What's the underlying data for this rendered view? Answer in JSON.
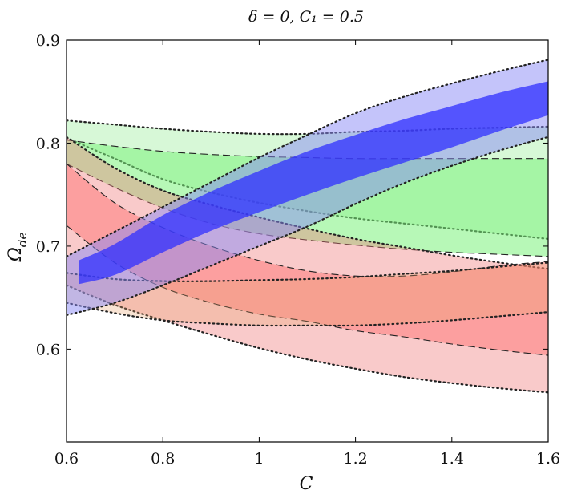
{
  "chart_data": {
    "type": "area",
    "title": "δ = 0, C₁ = 0.5",
    "xlabel": "C",
    "ylabel": "Ω_de",
    "ylabel_main": "Ω",
    "ylabel_sub": "de",
    "xlim": [
      0.6,
      1.6
    ],
    "ylim": [
      0.51,
      0.9
    ],
    "xticks": [
      0.6,
      0.8,
      1.0,
      1.2,
      1.4,
      1.6
    ],
    "xtick_labels": [
      "0.6",
      "0.8",
      "1",
      "1.2",
      "1.4",
      "1.6"
    ],
    "yticks": [
      0.6,
      0.7,
      0.8,
      0.9
    ],
    "ytick_labels": [
      "0.6",
      "0.7",
      "0.8",
      "0.9"
    ],
    "grid": false,
    "regions": [
      {
        "name": "green-outer",
        "color": "#a6f0a6",
        "opacity": 0.45,
        "border": "dotted",
        "x": [
          0.6,
          0.7,
          0.8,
          0.9,
          1.0,
          1.1,
          1.2,
          1.3,
          1.4,
          1.5,
          1.6
        ],
        "upper": [
          0.822,
          0.818,
          0.814,
          0.811,
          0.809,
          0.809,
          0.811,
          0.812,
          0.814,
          0.815,
          0.816
        ],
        "lower": [
          0.805,
          0.785,
          0.765,
          0.752,
          0.742,
          0.734,
          0.727,
          0.722,
          0.717,
          0.712,
          0.707
        ]
      },
      {
        "name": "green-inner",
        "color": "#7cf27c",
        "opacity": 0.55,
        "border": "dashed",
        "x": [
          0.6,
          0.7,
          0.8,
          0.9,
          1.0,
          1.1,
          1.2,
          1.3,
          1.4,
          1.5,
          1.6
        ],
        "upper": [
          0.803,
          0.797,
          0.792,
          0.789,
          0.787,
          0.786,
          0.785,
          0.785,
          0.785,
          0.785,
          0.785
        ],
        "lower": [
          0.78,
          0.757,
          0.737,
          0.722,
          0.712,
          0.706,
          0.701,
          0.697,
          0.694,
          0.692,
          0.69
        ]
      },
      {
        "name": "red-outer",
        "color": "#f07a7a",
        "opacity": 0.4,
        "border": "dotted",
        "x": [
          0.6,
          0.7,
          0.8,
          0.9,
          1.0,
          1.1,
          1.2,
          1.3,
          1.4,
          1.5,
          1.6
        ],
        "upper": [
          0.806,
          0.776,
          0.754,
          0.74,
          0.728,
          0.717,
          0.707,
          0.699,
          0.691,
          0.684,
          0.678
        ],
        "lower": [
          0.662,
          0.643,
          0.628,
          0.614,
          0.601,
          0.59,
          0.581,
          0.573,
          0.567,
          0.562,
          0.558
        ]
      },
      {
        "name": "red-inner",
        "color": "#ff6a6a",
        "opacity": 0.45,
        "border": "dashed",
        "x": [
          0.6,
          0.7,
          0.8,
          0.9,
          1.0,
          1.1,
          1.2,
          1.3,
          1.4,
          1.5,
          1.6
        ],
        "upper": [
          0.78,
          0.742,
          0.718,
          0.7,
          0.686,
          0.676,
          0.671,
          0.671,
          0.675,
          0.681,
          0.685
        ],
        "lower": [
          0.72,
          0.684,
          0.66,
          0.645,
          0.634,
          0.627,
          0.618,
          0.612,
          0.605,
          0.599,
          0.594
        ]
      },
      {
        "name": "horizontal-band",
        "color": "#e9a36c",
        "opacity": 0.3,
        "border": "dotted",
        "x": [
          0.6,
          0.7,
          0.8,
          0.9,
          1.0,
          1.1,
          1.2,
          1.3,
          1.4,
          1.5,
          1.6
        ],
        "upper": [
          0.674,
          0.668,
          0.666,
          0.666,
          0.667,
          0.668,
          0.67,
          0.673,
          0.676,
          0.68,
          0.684
        ],
        "lower": [
          0.645,
          0.635,
          0.628,
          0.625,
          0.623,
          0.623,
          0.623,
          0.625,
          0.628,
          0.632,
          0.636
        ]
      },
      {
        "name": "blue-outer",
        "color": "#8a8af5",
        "opacity": 0.5,
        "border": "dotted",
        "x": [
          0.6,
          0.7,
          0.8,
          0.9,
          1.0,
          1.1,
          1.2,
          1.3,
          1.4,
          1.5,
          1.6
        ],
        "upper": [
          0.69,
          0.714,
          0.738,
          0.762,
          0.786,
          0.808,
          0.829,
          0.845,
          0.858,
          0.87,
          0.881
        ],
        "lower": [
          0.633,
          0.645,
          0.662,
          0.681,
          0.7,
          0.719,
          0.741,
          0.761,
          0.778,
          0.793,
          0.806
        ]
      },
      {
        "name": "blue-inner",
        "color": "#2f2fff",
        "opacity": 0.75,
        "border": "none",
        "x": [
          0.625,
          0.7,
          0.8,
          0.9,
          1.0,
          1.1,
          1.2,
          1.3,
          1.4,
          1.5,
          1.6
        ],
        "upper": [
          0.686,
          0.702,
          0.73,
          0.753,
          0.773,
          0.792,
          0.808,
          0.823,
          0.836,
          0.849,
          0.86
        ],
        "lower": [
          0.663,
          0.672,
          0.694,
          0.715,
          0.733,
          0.75,
          0.766,
          0.781,
          0.796,
          0.812,
          0.827
        ]
      }
    ]
  }
}
